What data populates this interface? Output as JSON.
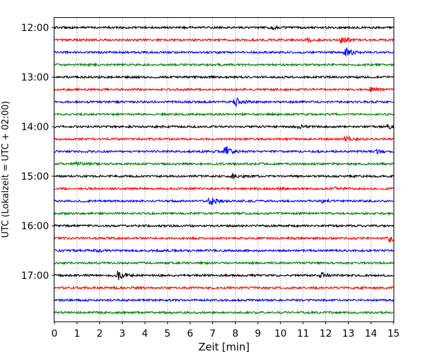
{
  "chart_data": {
    "type": "line",
    "title": "",
    "xlabel": "Zeit  [min]",
    "ylabel": "UTC (Lokalzeit = UTC + 02:00)",
    "xlim": [
      0,
      15
    ],
    "x_ticks": [
      0,
      1,
      2,
      3,
      4,
      5,
      6,
      7,
      8,
      9,
      10,
      11,
      12,
      13,
      14,
      15
    ],
    "y_tick_labels": [
      "12:00",
      "13:00",
      "14:00",
      "15:00",
      "16:00",
      "17:00"
    ],
    "grid": "vertical dotted at each minute",
    "series": [
      {
        "start": "12:00",
        "color": "#000000",
        "events": [
          {
            "t": 9.6,
            "amp": 0.35
          }
        ]
      },
      {
        "start": "12:15",
        "color": "#ff0000",
        "events": [
          {
            "t": 11.2,
            "amp": 0.4
          },
          {
            "t": 12.7,
            "amp": 0.8
          }
        ]
      },
      {
        "start": "12:30",
        "color": "#0000ff",
        "events": [
          {
            "t": 12.9,
            "amp": 1.0
          }
        ]
      },
      {
        "start": "12:45",
        "color": "#008000",
        "events": []
      },
      {
        "start": "13:00",
        "color": "#000000",
        "events": []
      },
      {
        "start": "13:15",
        "color": "#ff0000",
        "events": [
          {
            "t": 14.0,
            "amp": 0.5
          }
        ]
      },
      {
        "start": "13:30",
        "color": "#0000ff",
        "events": [
          {
            "t": 8.0,
            "amp": 1.1
          }
        ]
      },
      {
        "start": "13:45",
        "color": "#008000",
        "events": []
      },
      {
        "start": "14:00",
        "color": "#000000",
        "events": [
          {
            "t": 10.8,
            "amp": 0.35
          },
          {
            "t": 14.8,
            "amp": 0.4
          }
        ]
      },
      {
        "start": "14:15",
        "color": "#ff0000",
        "events": [
          {
            "t": 12.9,
            "amp": 0.6
          }
        ]
      },
      {
        "start": "14:30",
        "color": "#0000ff",
        "events": [
          {
            "t": 7.6,
            "amp": 1.1
          },
          {
            "t": 14.3,
            "amp": 0.4
          }
        ]
      },
      {
        "start": "14:45",
        "color": "#008000",
        "events": [
          {
            "t": 1.0,
            "amp": 0.35
          }
        ]
      },
      {
        "start": "15:00",
        "color": "#000000",
        "events": [
          {
            "t": 7.9,
            "amp": 0.35
          }
        ]
      },
      {
        "start": "15:15",
        "color": "#ff0000",
        "events": [
          {
            "t": 10.0,
            "amp": 0.35
          },
          {
            "t": 12.5,
            "amp": 0.45
          }
        ]
      },
      {
        "start": "15:30",
        "color": "#0000ff",
        "events": [
          {
            "t": 6.9,
            "amp": 1.0
          },
          {
            "t": 11.8,
            "amp": 0.35
          }
        ]
      },
      {
        "start": "15:45",
        "color": "#008000",
        "events": []
      },
      {
        "start": "16:00",
        "color": "#000000",
        "events": []
      },
      {
        "start": "16:15",
        "color": "#ff0000",
        "events": [
          {
            "t": 14.8,
            "amp": 0.9
          }
        ]
      },
      {
        "start": "16:30",
        "color": "#0000ff",
        "events": [
          {
            "t": 1.9,
            "amp": 0.4
          }
        ]
      },
      {
        "start": "16:45",
        "color": "#008000",
        "events": []
      },
      {
        "start": "17:00",
        "color": "#000000",
        "events": [
          {
            "t": 2.8,
            "amp": 1.2
          },
          {
            "t": 11.8,
            "amp": 0.6
          }
        ]
      },
      {
        "start": "17:15",
        "color": "#ff0000",
        "events": []
      },
      {
        "start": "17:30",
        "color": "#0000ff",
        "events": []
      },
      {
        "start": "17:45",
        "color": "#008000",
        "events": []
      }
    ]
  }
}
